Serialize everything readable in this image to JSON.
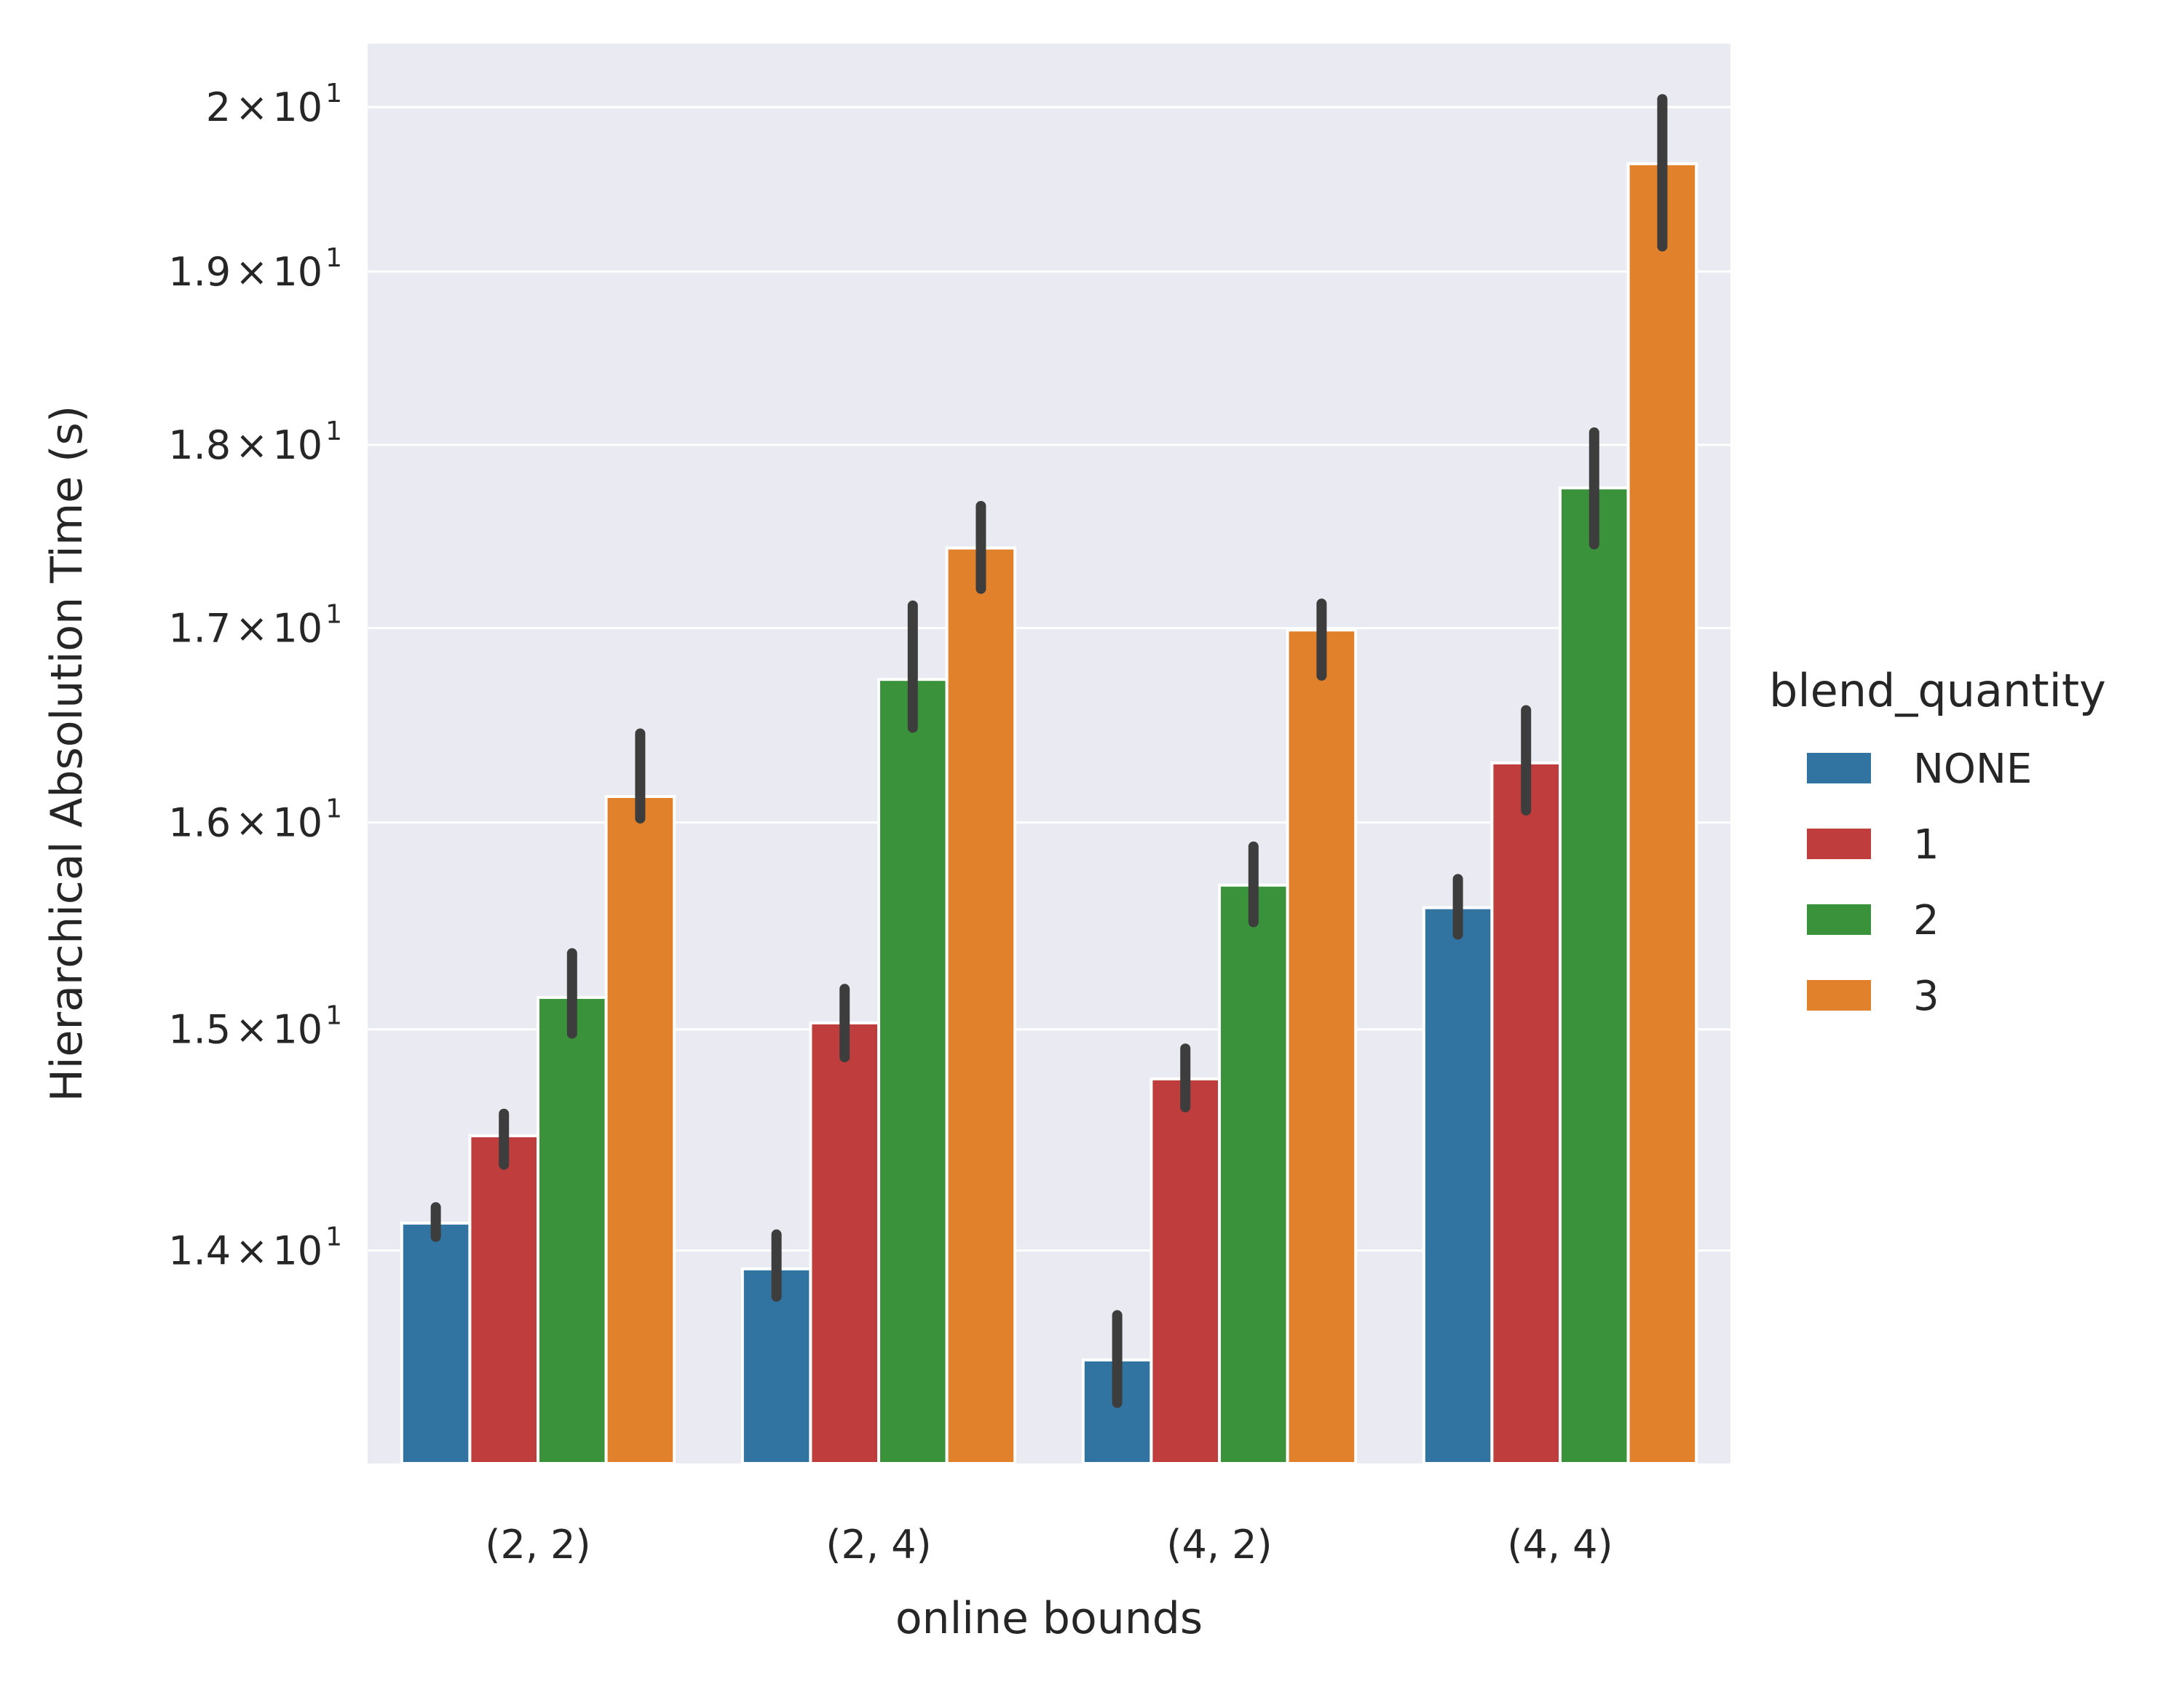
{
  "chart_data": {
    "type": "bar",
    "xlabel": "online bounds",
    "ylabel": "Hierarchical Absolution Time (s)",
    "y_scale": "log",
    "ylim": [
      13.1,
      20.4
    ],
    "y_ticks": [
      {
        "value": 14,
        "mantissa": "1.4",
        "times": "×",
        "base": "10",
        "exponent": "1"
      },
      {
        "value": 15,
        "mantissa": "1.5",
        "times": "×",
        "base": "10",
        "exponent": "1"
      },
      {
        "value": 16,
        "mantissa": "1.6",
        "times": "×",
        "base": "10",
        "exponent": "1"
      },
      {
        "value": 17,
        "mantissa": "1.7",
        "times": "×",
        "base": "10",
        "exponent": "1"
      },
      {
        "value": 18,
        "mantissa": "1.8",
        "times": "×",
        "base": "10",
        "exponent": "1"
      },
      {
        "value": 19,
        "mantissa": "1.9",
        "times": "×",
        "base": "10",
        "exponent": "1"
      },
      {
        "value": 20,
        "mantissa": "2",
        "times": "×",
        "base": "10",
        "exponent": "1"
      }
    ],
    "categories": [
      "(2, 2)",
      "(2, 4)",
      "(4, 2)",
      "(4, 4)"
    ],
    "grid": true,
    "legend_title": "blend_quantity",
    "legend_position": "right",
    "series": [
      {
        "name": "NONE",
        "color": "#3274a1",
        "values": [
          14.12,
          13.92,
          13.53,
          15.58
        ],
        "ci": [
          [
            14.06,
            14.19
          ],
          [
            13.8,
            14.07
          ],
          [
            13.35,
            13.72
          ],
          [
            15.45,
            15.72
          ]
        ]
      },
      {
        "name": "1",
        "color": "#c03d3e",
        "values": [
          14.51,
          15.03,
          14.77,
          16.3
        ],
        "ci": [
          [
            14.38,
            14.61
          ],
          [
            14.87,
            15.19
          ],
          [
            14.64,
            14.91
          ],
          [
            16.06,
            16.57
          ]
        ]
      },
      {
        "name": "2",
        "color": "#3a923a",
        "values": [
          15.15,
          16.73,
          15.69,
          17.76
        ],
        "ci": [
          [
            14.98,
            15.36
          ],
          [
            16.48,
            17.12
          ],
          [
            15.51,
            15.88
          ],
          [
            17.45,
            18.07
          ]
        ]
      },
      {
        "name": "3",
        "color": "#e1812c",
        "values": [
          16.13,
          17.43,
          16.99,
          19.65
        ],
        "ci": [
          [
            16.02,
            16.45
          ],
          [
            17.21,
            17.66
          ],
          [
            16.75,
            17.13
          ],
          [
            19.15,
            20.05
          ]
        ]
      }
    ],
    "error_bar_color": "#3d3d3d"
  }
}
